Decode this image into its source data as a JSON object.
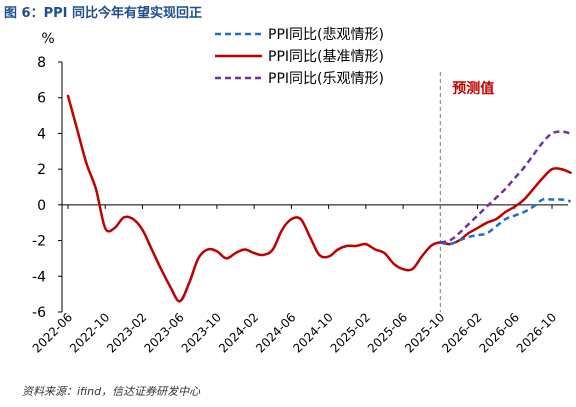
{
  "header": {
    "title": "图 6：PPI 同比今年有望实现回正"
  },
  "footer": {
    "source": "资料来源：ifind，信达证券研发中心"
  },
  "chart_data": {
    "type": "line",
    "ylabel": "%",
    "ylim": [
      -6,
      8
    ],
    "yticks": [
      -6,
      -4,
      -2,
      0,
      2,
      4,
      6,
      8
    ],
    "x_tick_labels": [
      "2022-06",
      "2022-10",
      "2023-02",
      "2023-06",
      "2023-10",
      "2024-02",
      "2024-06",
      "2024-10",
      "2025-02",
      "2025-06",
      "2025-10",
      "2026-02",
      "2026-06",
      "2026-10"
    ],
    "forecast_label": "预测值",
    "forecast_start": "2025-10",
    "grid": false,
    "legend_position": "top-right",
    "series": [
      {
        "name": "PPI同比(基准情形)",
        "color": "#c00000",
        "dash": "solid",
        "x": [
          "2022-06",
          "2022-07",
          "2022-08",
          "2022-09",
          "2022-10",
          "2022-11",
          "2022-12",
          "2023-01",
          "2023-02",
          "2023-03",
          "2023-04",
          "2023-05",
          "2023-06",
          "2023-07",
          "2023-08",
          "2023-09",
          "2023-10",
          "2023-11",
          "2023-12",
          "2024-01",
          "2024-02",
          "2024-03",
          "2024-04",
          "2024-05",
          "2024-06",
          "2024-07",
          "2024-08",
          "2024-09",
          "2024-10",
          "2024-11",
          "2024-12",
          "2025-01",
          "2025-02",
          "2025-03",
          "2025-04",
          "2025-05",
          "2025-06",
          "2025-07",
          "2025-08",
          "2025-09",
          "2025-10",
          "2025-11",
          "2025-12",
          "2026-01",
          "2026-02",
          "2026-03",
          "2026-04",
          "2026-05",
          "2026-06",
          "2026-07",
          "2026-08",
          "2026-09",
          "2026-10",
          "2026-11",
          "2026-12"
        ],
        "values": [
          6.1,
          4.2,
          2.3,
          0.9,
          -1.3,
          -1.3,
          -0.7,
          -0.8,
          -1.4,
          -2.5,
          -3.6,
          -4.6,
          -5.4,
          -4.4,
          -3.0,
          -2.5,
          -2.6,
          -3.0,
          -2.7,
          -2.5,
          -2.7,
          -2.8,
          -2.5,
          -1.4,
          -0.8,
          -0.8,
          -1.8,
          -2.8,
          -2.9,
          -2.5,
          -2.3,
          -2.3,
          -2.2,
          -2.5,
          -2.7,
          -3.3,
          -3.6,
          -3.6,
          -2.9,
          -2.3,
          -2.1,
          -2.2,
          -2.0,
          -1.6,
          -1.3,
          -1.0,
          -0.8,
          -0.4,
          -0.1,
          0.3,
          0.9,
          1.5,
          2.0,
          2.0,
          1.8
        ]
      },
      {
        "name": "PPI同比(悲观情形)",
        "color": "#1f6fc5",
        "dash": "dashed",
        "x": [
          "2025-10",
          "2025-11",
          "2025-12",
          "2026-01",
          "2026-02",
          "2026-03",
          "2026-04",
          "2026-05",
          "2026-06",
          "2026-07",
          "2026-08",
          "2026-09",
          "2026-10",
          "2026-11",
          "2026-12"
        ],
        "values": [
          -2.1,
          -2.2,
          -2.0,
          -1.8,
          -1.7,
          -1.6,
          -1.2,
          -0.8,
          -0.6,
          -0.4,
          -0.1,
          0.3,
          0.3,
          0.3,
          0.2
        ]
      },
      {
        "name": "PPI同比(乐观情形)",
        "color": "#7030a0",
        "dash": "dashed",
        "x": [
          "2025-10",
          "2025-11",
          "2025-12",
          "2026-01",
          "2026-02",
          "2026-03",
          "2026-04",
          "2026-05",
          "2026-06",
          "2026-07",
          "2026-08",
          "2026-09",
          "2026-10",
          "2026-11",
          "2026-12"
        ],
        "values": [
          -2.1,
          -2.0,
          -1.6,
          -1.1,
          -0.6,
          -0.1,
          0.4,
          0.9,
          1.5,
          2.1,
          2.8,
          3.5,
          4.0,
          4.1,
          4.0
        ]
      }
    ],
    "legend_order": [
      "PPI同比(悲观情形)",
      "PPI同比(基准情形)",
      "PPI同比(乐观情形)"
    ]
  }
}
